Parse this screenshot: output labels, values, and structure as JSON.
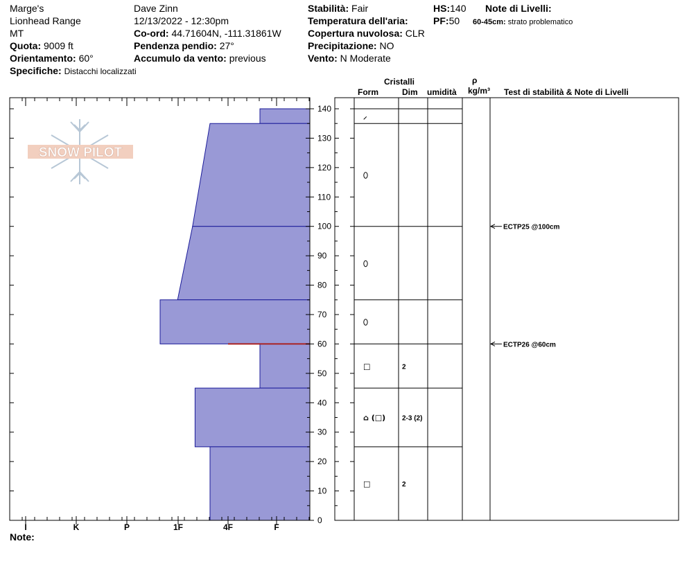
{
  "header": {
    "location": "Marge's",
    "range": "Lionhead Range",
    "state": "MT",
    "elevation": {
      "label": "Quota:",
      "value": "9009 ft"
    },
    "aspect": {
      "label": "Orientamento:",
      "value": "60°"
    },
    "specifics": {
      "label": "Specifiche:",
      "value": "Distacchi localizzati"
    },
    "observer": "Dave Zinn",
    "datetime": "12/13/2022 - 12:30pm",
    "coords": {
      "label": "Co-ord:",
      "value": "44.71604N, -111.31861W"
    },
    "slope": {
      "label": "Pendenza pendio:",
      "value": "27°"
    },
    "wind_loading": {
      "label": "Accumulo da vento:",
      "value": "previous"
    },
    "stability": {
      "label": "Stabilità:",
      "value": "Fair"
    },
    "air_temp": {
      "label": "Temperatura dell'aria:",
      "value": ""
    },
    "cloud_cover": {
      "label": "Copertura nuvolosa:",
      "value": "CLR"
    },
    "precip": {
      "label": "Precipitazione:",
      "value": "NO"
    },
    "wind": {
      "label": "Vento:",
      "value": "N Moderate"
    },
    "hs": {
      "label": "HS:",
      "value": "140"
    },
    "pf": {
      "label": "PF:",
      "value": "50"
    },
    "layer_notes": {
      "label": "Note di Livelli:",
      "range": "60-45cm:",
      "text": "strato problematico"
    }
  },
  "columns": {
    "crystals": "Cristalli",
    "form": "Form",
    "size": "Dim",
    "moisture": "umidità",
    "density_symbol": "ρ",
    "density_unit": "kg/m³",
    "stability_notes": "Test di stabilità & Note di Livelli"
  },
  "notes_label": "Note:",
  "logo_text": "SNOW PILOT",
  "colors": {
    "hardness_fill": "#9999d6",
    "hardness_stroke": "#1a1a99",
    "weak_layer": "#aa2222"
  },
  "chart_data": {
    "type": "bar",
    "orientation": "horizontal-profile",
    "x_ticks": [
      "I",
      "K",
      "P",
      "1F",
      "4F",
      "F"
    ],
    "y_ticks": [
      0,
      10,
      20,
      30,
      40,
      50,
      60,
      70,
      80,
      90,
      100,
      110,
      120,
      130,
      140
    ],
    "ylim": [
      0,
      140
    ],
    "hardness_layers": [
      {
        "bottom": 135,
        "top": 140,
        "hard_bottom": 1.0,
        "hard_top": 1.0
      },
      {
        "bottom": 100,
        "top": 135,
        "hard_bottom": 2.35,
        "hard_top": 2.0
      },
      {
        "bottom": 75,
        "top": 100,
        "hard_bottom": 2.65,
        "hard_top": 2.35
      },
      {
        "bottom": 60,
        "top": 75,
        "hard_bottom": 3.0,
        "hard_top": 3.0
      },
      {
        "bottom": 45,
        "top": 60,
        "hard_bottom": 1.0,
        "hard_top": 1.0
      },
      {
        "bottom": 25,
        "top": 45,
        "hard_bottom": 2.3,
        "hard_top": 2.3
      },
      {
        "bottom": 0,
        "top": 25,
        "hard_bottom": 2.0,
        "hard_top": 2.0
      }
    ],
    "weak_layer_depth": 60,
    "layer_boundaries": [
      140,
      135,
      100,
      75,
      60,
      45,
      25,
      0
    ],
    "grain_symbols": [
      {
        "depth": 137.5,
        "symbol": "⸝",
        "size": ""
      },
      {
        "depth": 117.5,
        "symbol": "⬯",
        "size": ""
      },
      {
        "depth": 87.5,
        "symbol": "⬯",
        "size": ""
      },
      {
        "depth": 67.5,
        "symbol": "⬯",
        "size": ""
      },
      {
        "depth": 52.5,
        "symbol": "□",
        "size": "2"
      },
      {
        "depth": 35,
        "symbol": "⌂ (□)",
        "size": "2-3 (2)"
      },
      {
        "depth": 12.5,
        "symbol": "□",
        "size": "2"
      }
    ],
    "stability_tests": [
      {
        "depth": 100,
        "label": "ECTP25 @100cm"
      },
      {
        "depth": 60,
        "label": "ECTP26 @60cm"
      }
    ]
  }
}
